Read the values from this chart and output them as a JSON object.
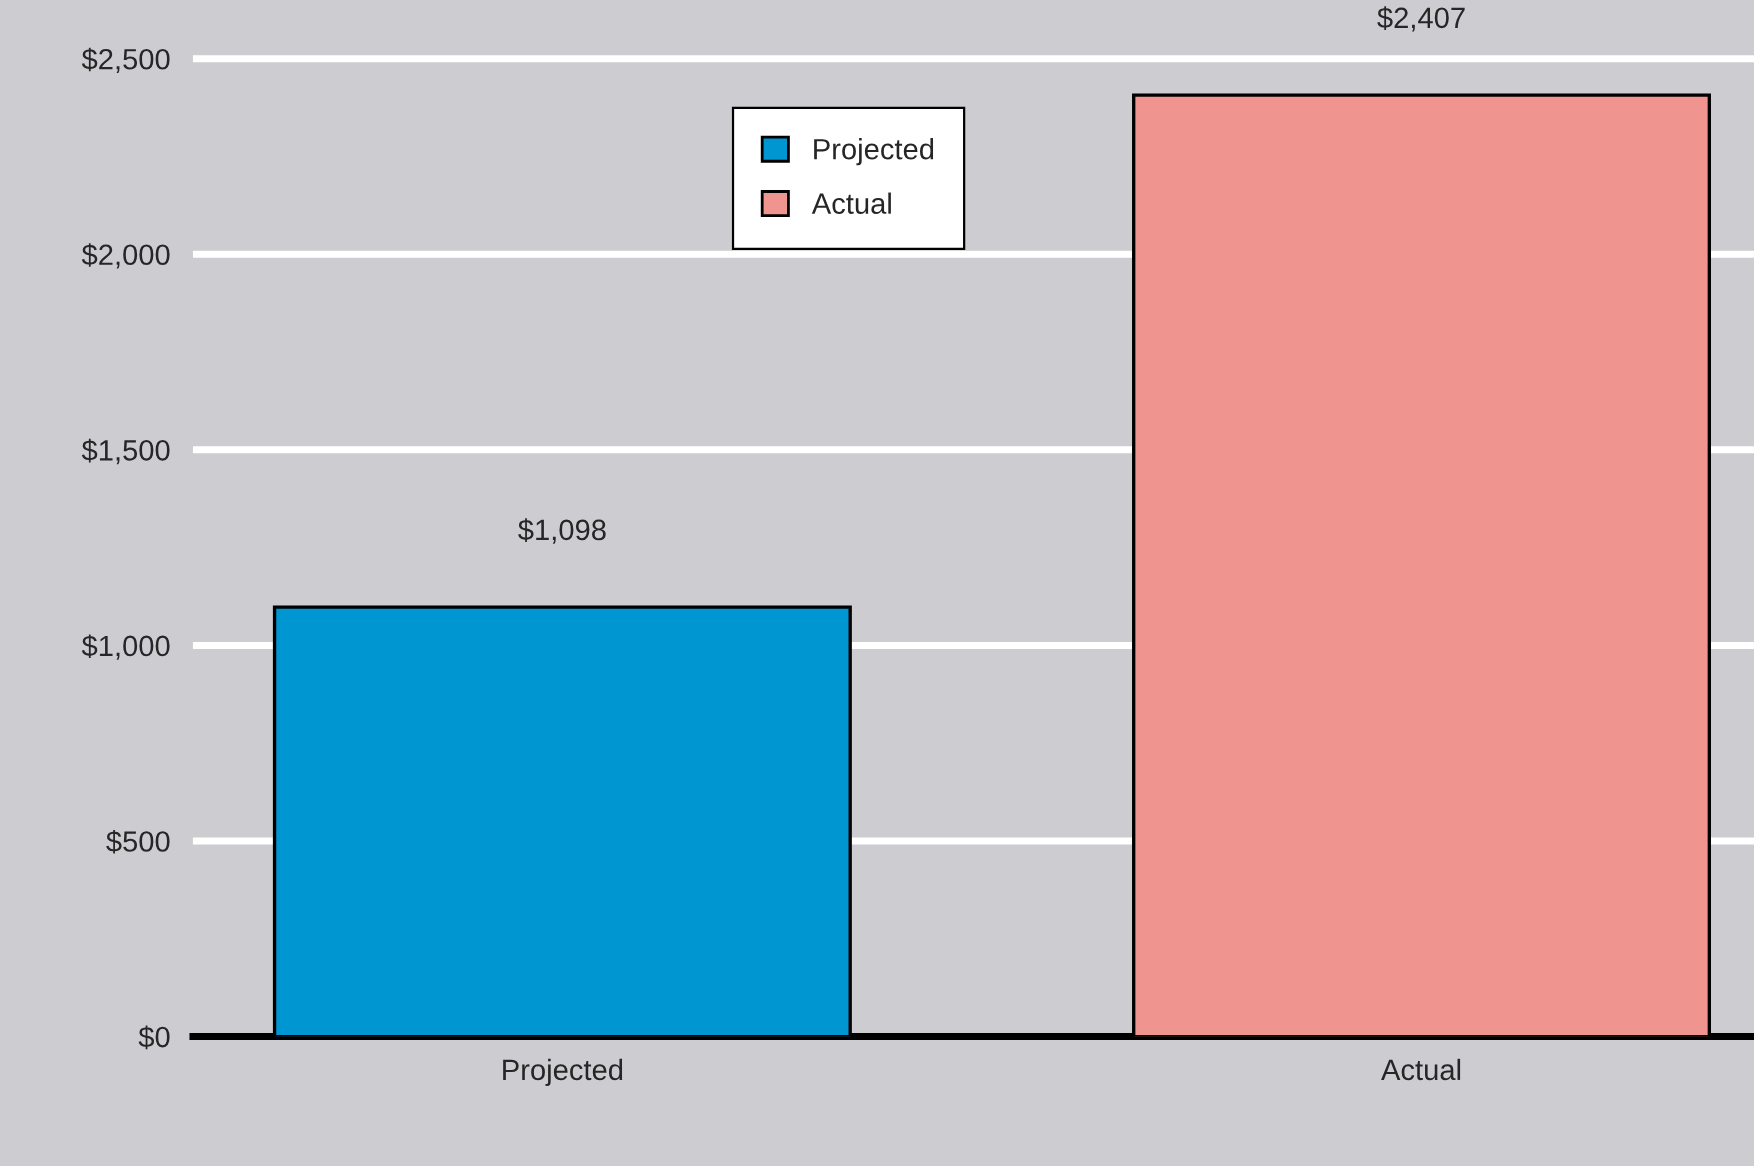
{
  "chart_data": {
    "type": "bar",
    "categories": [
      "Projected",
      "Actual"
    ],
    "series": [
      {
        "name": "Projected",
        "color": "#0096d1",
        "values": [
          1098,
          null
        ]
      },
      {
        "name": "Actual",
        "color": "#f09490",
        "values": [
          null,
          2407
        ]
      }
    ],
    "value_labels": [
      "$1,098",
      "$2,407"
    ],
    "ylim": [
      0,
      2650
    ],
    "yticks": [
      {
        "value": 0,
        "label": "$0"
      },
      {
        "value": 500,
        "label": "$500"
      },
      {
        "value": 1000,
        "label": "$1,000"
      },
      {
        "value": 1500,
        "label": "$1,500"
      },
      {
        "value": 2000,
        "label": "$2,000"
      },
      {
        "value": 2500,
        "label": "$2,500"
      }
    ],
    "grid": "y",
    "legend": "top"
  }
}
